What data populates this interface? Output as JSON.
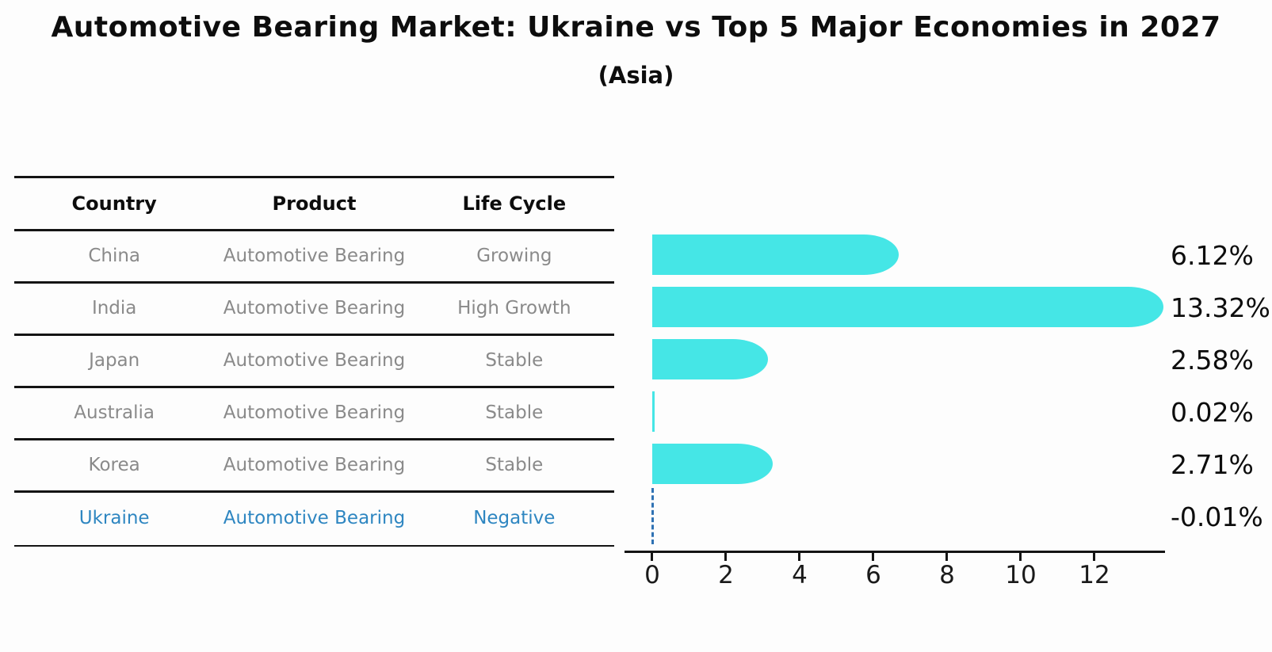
{
  "header": {
    "title": "Automotive Bearing Market: Ukraine vs Top 5 Major Economies in 2027",
    "subtitle": "(Asia)"
  },
  "table": {
    "headers": [
      "Country",
      "Product",
      "Life Cycle"
    ],
    "rows": [
      {
        "country": "China",
        "product": "Automotive Bearing",
        "life_cycle": "Growing"
      },
      {
        "country": "India",
        "product": "Automotive Bearing",
        "life_cycle": "High Growth"
      },
      {
        "country": "Japan",
        "product": "Automotive Bearing",
        "life_cycle": "Stable"
      },
      {
        "country": "Australia",
        "product": "Automotive Bearing",
        "life_cycle": "Stable"
      },
      {
        "country": "Korea",
        "product": "Automotive Bearing",
        "life_cycle": "Stable"
      },
      {
        "country": "Ukraine",
        "product": "Automotive Bearing",
        "life_cycle": "Negative"
      }
    ]
  },
  "chart_data": {
    "type": "bar",
    "orientation": "horizontal",
    "title": "Automotive Bearing Market: Ukraine vs Top 5 Major Economies in 2027",
    "subtitle": "(Asia)",
    "categories": [
      "China",
      "India",
      "Japan",
      "Australia",
      "Korea",
      "Ukraine"
    ],
    "values": [
      6.12,
      13.32,
      2.58,
      0.02,
      2.71,
      -0.01
    ],
    "value_labels": [
      "6.12%",
      "13.32%",
      "2.58%",
      "0.02%",
      "2.71%",
      "-0.01%"
    ],
    "xticks": [
      "0",
      "2",
      "4",
      "6",
      "8",
      "10",
      "12"
    ],
    "xlim": [
      -0.75,
      13.9
    ],
    "grid": false,
    "legend": "none",
    "bar_color": "#45e6e6",
    "negative_marker_color": "#2f72b4",
    "highlight_row": "Ukraine",
    "highlight_color": "#2e86c1",
    "axis_color": "#141414",
    "body_text_color": "#8a8a8a"
  }
}
